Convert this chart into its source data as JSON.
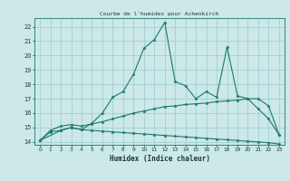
{
  "title": "Courbe de l'humidex pour Achenkirch",
  "xlabel": "Humidex (Indice chaleur)",
  "bg_color": "#cce8e8",
  "grid_color": "#99cccc",
  "line_color": "#1a7a6a",
  "xlim": [
    -0.5,
    23.5
  ],
  "ylim": [
    13.8,
    22.6
  ],
  "xticks": [
    0,
    1,
    2,
    3,
    4,
    5,
    6,
    7,
    8,
    9,
    10,
    11,
    12,
    13,
    14,
    15,
    16,
    17,
    18,
    19,
    20,
    21,
    22,
    23
  ],
  "yticks": [
    14,
    15,
    16,
    17,
    18,
    19,
    20,
    21,
    22
  ],
  "line1_x": [
    0,
    1,
    2,
    3,
    4,
    5,
    6,
    7,
    8,
    9,
    10,
    11,
    12,
    13,
    14,
    15,
    16,
    17,
    18,
    19,
    20,
    21,
    22,
    23
  ],
  "line1_y": [
    14.1,
    14.7,
    14.8,
    15.0,
    14.85,
    14.8,
    14.75,
    14.7,
    14.65,
    14.6,
    14.55,
    14.5,
    14.45,
    14.4,
    14.35,
    14.3,
    14.25,
    14.2,
    14.15,
    14.1,
    14.05,
    14.0,
    13.95,
    13.85
  ],
  "line2_x": [
    0,
    1,
    2,
    3,
    4,
    5,
    6,
    7,
    8,
    9,
    10,
    11,
    12,
    13,
    14,
    15,
    16,
    17,
    18,
    19,
    20,
    21,
    22,
    23
  ],
  "line2_y": [
    14.1,
    14.8,
    15.1,
    15.2,
    15.1,
    15.25,
    15.4,
    15.6,
    15.8,
    16.0,
    16.15,
    16.3,
    16.45,
    16.5,
    16.6,
    16.65,
    16.7,
    16.8,
    16.85,
    16.9,
    17.0,
    17.0,
    16.5,
    14.5
  ],
  "line3_x": [
    0,
    2,
    3,
    4,
    5,
    6,
    7,
    8,
    9,
    10,
    11,
    12,
    13,
    14,
    15,
    16,
    17,
    18,
    19,
    20,
    21,
    22,
    23
  ],
  "line3_y": [
    14.1,
    14.8,
    15.0,
    14.85,
    15.3,
    16.0,
    17.1,
    17.5,
    18.7,
    20.5,
    21.1,
    22.3,
    18.2,
    17.9,
    17.0,
    17.5,
    17.1,
    20.6,
    17.2,
    17.0,
    16.3,
    15.6,
    14.5
  ]
}
